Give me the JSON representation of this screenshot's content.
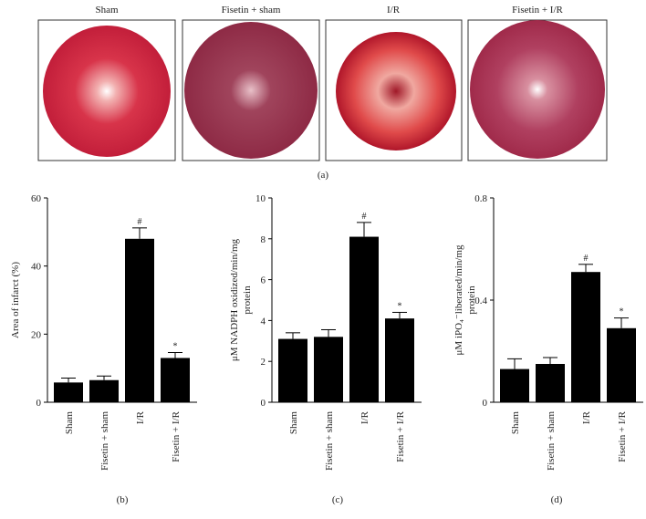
{
  "panel_a": {
    "labels": [
      "Sham",
      "Fisetin + sham",
      "I/R",
      "Fisetin + I/R"
    ],
    "caption": "(a)"
  },
  "chart_data": [
    {
      "type": "bar",
      "caption": "(b)",
      "ylabel": [
        "Area of infarct (%)"
      ],
      "categories": [
        "Sham",
        "Fisetin + sham",
        "I/R",
        "Fisetin + I/R"
      ],
      "values": [
        5.8,
        6.5,
        48,
        13
      ],
      "errors": [
        1.3,
        1.2,
        3.2,
        1.6
      ],
      "markers": [
        null,
        null,
        "#",
        "*"
      ],
      "color": "#000000",
      "ylim": [
        0,
        60
      ],
      "yticks": [
        0,
        20,
        40,
        60
      ]
    },
    {
      "type": "bar",
      "caption": "(c)",
      "ylabel": [
        "μM NADPH oxidized/min/mg",
        "protein"
      ],
      "categories": [
        "Sham",
        "Fisetin + sham",
        "I/R",
        "Fisetin + I/R"
      ],
      "values": [
        3.1,
        3.2,
        8.1,
        4.1
      ],
      "errors": [
        0.3,
        0.35,
        0.7,
        0.3
      ],
      "markers": [
        null,
        null,
        "#",
        "*"
      ],
      "color": "#000000",
      "ylim": [
        0,
        10
      ],
      "yticks": [
        0,
        2,
        4,
        6,
        8,
        10
      ]
    },
    {
      "type": "bar",
      "caption": "(d)",
      "ylabel": [
        "μM iPO₄⁻liberated/min/mg",
        "protein"
      ],
      "categories": [
        "Sham",
        "Fisetin + sham",
        "I/R",
        "Fisetin + I/R"
      ],
      "values": [
        0.13,
        0.15,
        0.51,
        0.29
      ],
      "errors": [
        0.04,
        0.025,
        0.03,
        0.04
      ],
      "markers": [
        null,
        null,
        "#",
        "*"
      ],
      "color": "#000000",
      "ylim": [
        0,
        0.8
      ],
      "yticks": [
        0,
        0.4,
        0.8
      ]
    }
  ]
}
